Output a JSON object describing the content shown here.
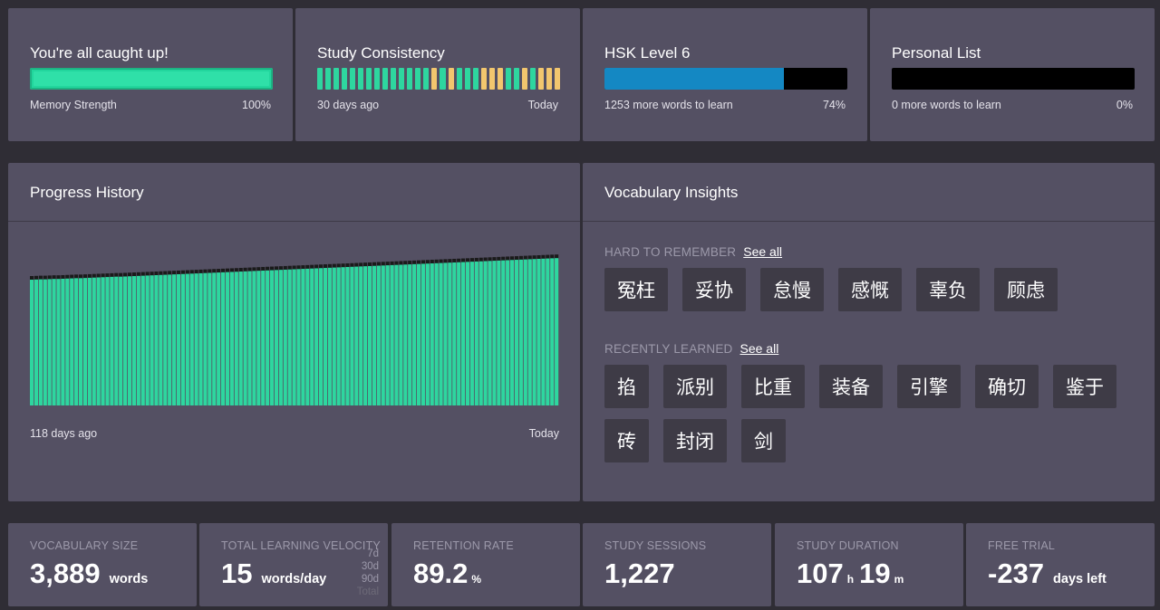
{
  "top_cards": {
    "caught_up": {
      "title": "You're all caught up!",
      "bar_label": "Memory Strength",
      "percent": "100%"
    },
    "consistency": {
      "title": "Study Consistency",
      "start_label": "30 days ago",
      "end_label": "Today",
      "days": [
        "g",
        "g",
        "g",
        "g",
        "g",
        "g",
        "g",
        "g",
        "g",
        "g",
        "g",
        "g",
        "g",
        "g",
        "y",
        "g",
        "y",
        "g",
        "g",
        "g",
        "y",
        "y",
        "y",
        "g",
        "g",
        "y",
        "g",
        "y",
        "y",
        "y"
      ]
    },
    "hsk": {
      "title": "HSK Level 6",
      "remaining": "1253 more words to learn",
      "percent": "74%",
      "fill_fraction": 0.74
    },
    "personal": {
      "title": "Personal List",
      "remaining": "0 more words to learn",
      "percent": "0%",
      "fill_fraction": 0
    }
  },
  "progress_history": {
    "title": "Progress History",
    "start_label": "118 days ago",
    "end_label": "Today"
  },
  "chart_data": {
    "type": "bar",
    "x_range_label": [
      "118 days ago",
      "Today"
    ],
    "series": [
      {
        "values": [
          3320,
          3325,
          3330,
          3330,
          3335,
          3340,
          3340,
          3345,
          3350,
          3355,
          3360,
          3360,
          3365,
          3370,
          3375,
          3380,
          3385,
          3390,
          3395,
          3400,
          3400,
          3405,
          3410,
          3415,
          3420,
          3425,
          3430,
          3435,
          3440,
          3445,
          3450,
          3455,
          3460,
          3465,
          3470,
          3475,
          3480,
          3485,
          3490,
          3495,
          3500,
          3505,
          3510,
          3515,
          3520,
          3525,
          3530,
          3535,
          3540,
          3545,
          3550,
          3555,
          3560,
          3565,
          3570,
          3575,
          3580,
          3585,
          3590,
          3595,
          3600,
          3605,
          3610,
          3615,
          3620,
          3625,
          3630,
          3635,
          3640,
          3645,
          3650,
          3655,
          3660,
          3665,
          3670,
          3675,
          3680,
          3685,
          3690,
          3695,
          3700,
          3705,
          3710,
          3715,
          3720,
          3725,
          3730,
          3735,
          3740,
          3745,
          3750,
          3755,
          3760,
          3765,
          3770,
          3775,
          3780,
          3785,
          3790,
          3795,
          3800,
          3805,
          3810,
          3815,
          3820,
          3825,
          3830,
          3835,
          3840,
          3845,
          3850,
          3855,
          3860,
          3865,
          3870,
          3875,
          3880,
          3885,
          3889
        ]
      }
    ],
    "color": "#2ed69f",
    "gap_color": "#1a1a1a"
  },
  "vocab_insights": {
    "title": "Vocabulary Insights",
    "hard": {
      "label": "HARD TO REMEMBER",
      "see_all": "See all",
      "words": [
        "冤枉",
        "妥协",
        "怠慢",
        "感慨",
        "辜负",
        "顾虑"
      ]
    },
    "recent": {
      "label": "RECENTLY LEARNED",
      "see_all": "See all",
      "row1": [
        "掐",
        "派别",
        "比重",
        "装备",
        "引擎",
        "确切",
        "鉴于"
      ],
      "row2": [
        "砖",
        "封闭",
        "剑"
      ]
    }
  },
  "stats": {
    "vocab": {
      "label": "VOCABULARY SIZE",
      "value": "3,889",
      "unit": "words"
    },
    "velocity": {
      "label": "TOTAL LEARNING VELOCITY",
      "value": "15",
      "unit": "words/day",
      "periods": [
        "7d",
        "30d",
        "90d",
        "Total"
      ]
    },
    "retention": {
      "label": "RETENTION RATE",
      "value": "89.2",
      "unit": "%"
    },
    "sessions": {
      "label": "STUDY SESSIONS",
      "value": "1,227"
    },
    "duration": {
      "label": "STUDY DURATION",
      "hours": "107",
      "h_unit": "h",
      "minutes": "19",
      "m_unit": "m"
    },
    "trial": {
      "label": "FREE TRIAL",
      "value": "-237",
      "unit": "days left"
    }
  }
}
